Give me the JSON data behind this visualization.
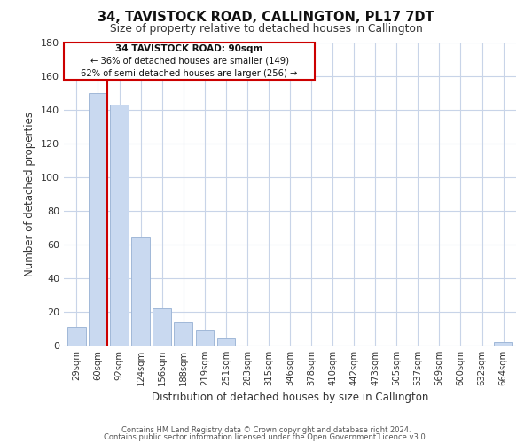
{
  "title": "34, TAVISTOCK ROAD, CALLINGTON, PL17 7DT",
  "subtitle": "Size of property relative to detached houses in Callington",
  "xlabel": "Distribution of detached houses by size in Callington",
  "ylabel": "Number of detached properties",
  "bar_labels": [
    "29sqm",
    "60sqm",
    "92sqm",
    "124sqm",
    "156sqm",
    "188sqm",
    "219sqm",
    "251sqm",
    "283sqm",
    "315sqm",
    "346sqm",
    "378sqm",
    "410sqm",
    "442sqm",
    "473sqm",
    "505sqm",
    "537sqm",
    "569sqm",
    "600sqm",
    "632sqm",
    "664sqm"
  ],
  "bar_values": [
    11,
    150,
    143,
    64,
    22,
    14,
    9,
    4,
    0,
    0,
    0,
    0,
    0,
    0,
    0,
    0,
    0,
    0,
    0,
    0,
    2
  ],
  "bar_color": "#c9d9f0",
  "bar_edge_color": "#a0b8d8",
  "highlight_bar_index": 1,
  "highlight_edge_color": "#cc0000",
  "ylim": [
    0,
    180
  ],
  "yticks": [
    0,
    20,
    40,
    60,
    80,
    100,
    120,
    140,
    160,
    180
  ],
  "annotation_title": "34 TAVISTOCK ROAD: 90sqm",
  "annotation_line1": "← 36% of detached houses are smaller (149)",
  "annotation_line2": "62% of semi-detached houses are larger (256) →",
  "footer_line1": "Contains HM Land Registry data © Crown copyright and database right 2024.",
  "footer_line2": "Contains public sector information licensed under the Open Government Licence v3.0.",
  "background_color": "#ffffff",
  "grid_color": "#c8d4e8"
}
